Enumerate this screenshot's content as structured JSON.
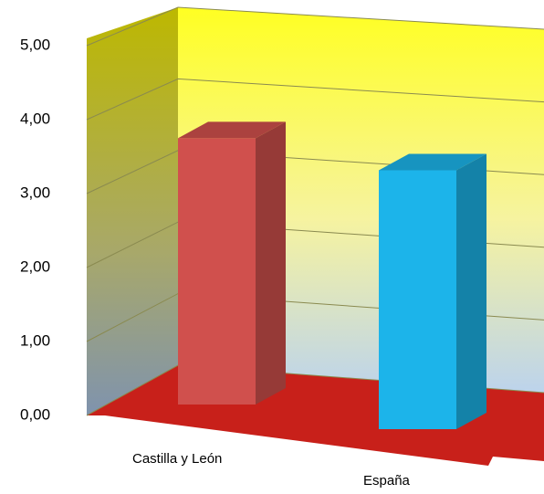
{
  "chart_data": {
    "type": "bar3d",
    "categories": [
      "Castilla y León",
      "España"
    ],
    "values": [
      3.6,
      3.5
    ],
    "colors": [
      "#d0504d",
      "#1cb4ea"
    ],
    "ylim": [
      0,
      5
    ],
    "yticks": [
      {
        "value": 0,
        "label": "0,00"
      },
      {
        "value": 1,
        "label": "1,00"
      },
      {
        "value": 2,
        "label": "2,00"
      },
      {
        "value": 3,
        "label": "3,00"
      },
      {
        "value": 4,
        "label": "4,00"
      },
      {
        "value": 5,
        "label": "5,00"
      }
    ],
    "grid": true
  }
}
